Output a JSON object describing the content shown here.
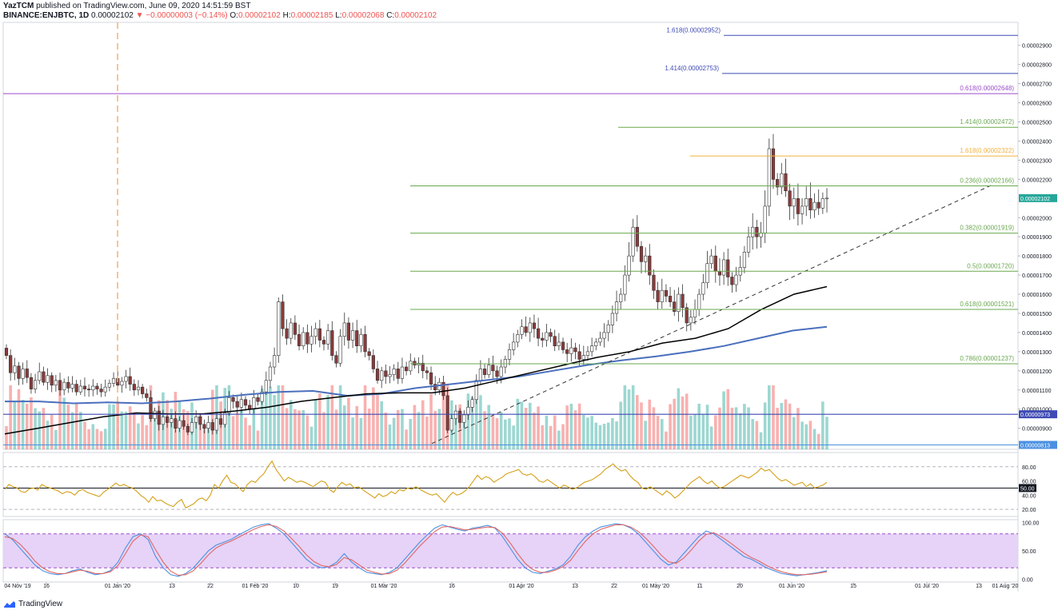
{
  "header": {
    "author": "YazTCM",
    "published_text": "published on TradingView.com, June 09, 2020 14:51:59 BST",
    "symbol": "BINANCE:ENJBTC, 1D",
    "last": "0.00002102",
    "change": "▼ −0.00000003 (−0.14%)",
    "o_label": "O:",
    "o": "0.00002102",
    "h_label": "H:",
    "h": "0.00002185",
    "l_label": "L:",
    "l": "0.00002068",
    "c_label": "C:",
    "c": "0.00002102"
  },
  "footer": {
    "brand": "TradingView"
  },
  "colors": {
    "up": "#26a69a",
    "down": "#ef5350",
    "fib_green": "#6aa84f",
    "fib_orange": "#f0b03c",
    "fib_purple": "#9c4dcc",
    "blue_line": "#3f4ab5",
    "ma_black": "#000000",
    "ma_blue": "#4a6fbd",
    "rsi": "#d4a017",
    "stoch_k": "#4a90e2",
    "stoch_d": "#e06666",
    "stoch_band": "#e6d3f7"
  },
  "chart_data": [
    {
      "type": "candlestick",
      "title": "BINANCE:ENJBTC, 1D",
      "ylim": [
        7.9e-06,
        3.02e-05
      ],
      "y_ticks": [
        "0.00002900",
        "0.00002800",
        "0.00002700",
        "0.00002600",
        "0.00002500",
        "0.00002400",
        "0.00002300",
        "0.00002200",
        "0.00002000",
        "0.00001900",
        "0.00001800",
        "0.00001700",
        "0.00001600",
        "0.00001500",
        "0.00001400",
        "0.00001300",
        "0.00001200",
        "0.00001100",
        "0.00001000",
        "0.00000900"
      ],
      "x_ticks": [
        "04 Nov '19",
        "16",
        "01 Jan '20",
        "13",
        "22",
        "01 Feb '20",
        "10",
        "19",
        "01 Mar '20",
        "16",
        "01 Apr '20",
        "13",
        "22",
        "01 May '20",
        "11",
        "20",
        "01 Jun '20",
        "15",
        "01 Jul '20",
        "13",
        "01 Aug '20"
      ],
      "price_badges": [
        {
          "label": "0.00002102",
          "value": 2.102e-05,
          "color": "#26a69a"
        },
        {
          "label": "0.00000973",
          "value": 9.73e-06,
          "color": "#3f4ab5"
        },
        {
          "label": "0.00000813",
          "value": 8.13e-06,
          "color": "#4a90e2"
        }
      ],
      "horizontal_levels": [
        {
          "label": "1.618(0.00002952)",
          "value": 2.952e-05,
          "color": "#3f4ab5"
        },
        {
          "label": "1.414(0.00002753)",
          "value": 2.753e-05,
          "color": "#3f4ab5"
        },
        {
          "label": "0.618(0.00002648)",
          "value": 2.648e-05,
          "color": "#9c4dcc"
        },
        {
          "label": "1.414(0.00002472)",
          "value": 2.472e-05,
          "color": "#6aa84f"
        },
        {
          "label": "1.618(0.00002322)",
          "value": 2.322e-05,
          "color": "#f0b03c"
        },
        {
          "label": "0.236(0.00002166)",
          "value": 2.166e-05,
          "color": "#6aa84f"
        },
        {
          "label": "0.382(0.00001919)",
          "value": 1.919e-05,
          "color": "#6aa84f"
        },
        {
          "label": "0.5(0.00001720)",
          "value": 1.72e-05,
          "color": "#6aa84f"
        },
        {
          "label": "0.618(0.00001521)",
          "value": 1.521e-05,
          "color": "#6aa84f"
        },
        {
          "label": "0.786(0.00001237)",
          "value": 1.237e-05,
          "color": "#6aa84f"
        }
      ],
      "closes": [
        1.28e-05,
        1.19e-05,
        1.225e-05,
        1.16e-05,
        1.21e-05,
        1.165e-05,
        1.105e-05,
        1.15e-05,
        1.195e-05,
        1.14e-05,
        1.175e-05,
        1.125e-05,
        1.15e-05,
        1.1e-05,
        1.14e-05,
        1.11e-05,
        1.13e-05,
        1.09e-05,
        1.12e-05,
        1.105e-05,
        1.1e-05,
        1.12e-05,
        1.105e-05,
        1.09e-05,
        1.115e-05,
        1.135e-05,
        1.16e-05,
        1.125e-05,
        1.145e-05,
        1.17e-05,
        1.13e-05,
        1.1e-05,
        1.115e-05,
        1.08e-05,
        1.06e-05,
        9.5e-06,
        9.9e-06,
        9.2e-06,
        9.6e-06,
        9.3e-06,
        9.5e-06,
        9e-06,
        9.4e-06,
        9.1e-06,
        8.8e-06,
        9.3e-06,
        9.6e-06,
        9.2e-06,
        9e-06,
        9.3e-06,
        8.9e-06,
        9.5e-06,
        9.2e-06,
        9.8e-06,
        1.06e-05,
        1.04e-05,
        1.01e-05,
        1.05e-05,
        1.02e-05,
        1e-05,
        1.06e-05,
        1.04e-05,
        1.09e-05,
        1.15e-05,
        1.22e-05,
        1.28e-05,
        1.56e-05,
        1.42e-05,
        1.37e-05,
        1.45e-05,
        1.39e-05,
        1.33e-05,
        1.4e-05,
        1.34e-05,
        1.38e-05,
        1.42e-05,
        1.36e-05,
        1.34e-05,
        1.41e-05,
        1.28e-05,
        1.24e-05,
        1.38e-05,
        1.45e-05,
        1.36e-05,
        1.41e-05,
        1.33e-05,
        1.39e-05,
        1.3e-05,
        1.28e-05,
        1.21e-05,
        1.15e-05,
        1.2e-05,
        1.17e-05,
        1.18e-05,
        1.21e-05,
        1.16e-05,
        1.22e-05,
        1.2e-05,
        1.25e-05,
        1.23e-05,
        1.24e-05,
        1.2e-05,
        1.19e-05,
        1.13e-05,
        1.1e-05,
        1.14e-05,
        1.07e-05,
        8.9e-06,
        9.5e-06,
        9.9e-06,
        9.3e-06,
        9.7e-06,
        1.01e-05,
        1.05e-05,
        1.15e-05,
        1.21e-05,
        1.18e-05,
        1.23e-05,
        1.2e-05,
        1.17e-05,
        1.22e-05,
        1.26e-05,
        1.31e-05,
        1.35e-05,
        1.39e-05,
        1.43e-05,
        1.4e-05,
        1.45e-05,
        1.42e-05,
        1.37e-05,
        1.36e-05,
        1.4e-05,
        1.38e-05,
        1.33e-05,
        1.35e-05,
        1.31e-05,
        1.29e-05,
        1.32e-05,
        1.3e-05,
        1.26e-05,
        1.28e-05,
        1.3e-05,
        1.33e-05,
        1.35e-05,
        1.37e-05,
        1.4e-05,
        1.44e-05,
        1.5e-05,
        1.56e-05,
        1.6e-05,
        1.7e-05,
        1.8e-05,
        1.95e-05,
        1.85e-05,
        1.77e-05,
        1.8e-05,
        1.7e-05,
        1.62e-05,
        1.56e-05,
        1.62e-05,
        1.59e-05,
        1.56e-05,
        1.51e-05,
        1.6e-05,
        1.53e-05,
        1.45e-05,
        1.48e-05,
        1.52e-05,
        1.6e-05,
        1.66e-05,
        1.76e-05,
        1.8e-05,
        1.72e-05,
        1.7e-05,
        1.78e-05,
        1.69e-05,
        1.65e-05,
        1.7e-05,
        1.74e-05,
        1.82e-05,
        1.9e-05,
        1.95e-05,
        1.9e-05,
        1.92e-05,
        2.06e-05,
        2.36e-05,
        2.2e-05,
        2.16e-05,
        2.23e-05,
        2.14e-05,
        2.06e-05,
        2.1e-05,
        2.02e-05,
        2.06e-05,
        2.1e-05,
        2.04e-05,
        2.08e-05,
        2.05e-05,
        2.1e-05,
        2.102e-05
      ],
      "ma_200": [
        8.7e-06,
        9e-06,
        9.3e-06,
        9.6e-06,
        9.8e-06,
        9.75e-06,
        9.75e-06,
        9.9e-06,
        1.01e-05,
        1.04e-05,
        1.06e-05,
        1.08e-05,
        1.085e-05,
        1.085e-05,
        1.11e-05,
        1.15e-05,
        1.19e-05,
        1.23e-05,
        1.27e-05,
        1.3e-05,
        1.345e-05,
        1.37e-05,
        1.42e-05,
        1.52e-05,
        1.6e-05,
        1.64e-05
      ],
      "ma_200_name_hint": "",
      "ma_blue": [
        1.04e-05,
        1.04e-05,
        1.03e-05,
        1.035e-05,
        1.03e-05,
        1.04e-05,
        1.055e-05,
        1.075e-05,
        1.09e-05,
        1.095e-05,
        1.07e-05,
        1.08e-05,
        1.11e-05,
        1.13e-05,
        1.15e-05,
        1.17e-05,
        1.2e-05,
        1.23e-05,
        1.255e-05,
        1.275e-05,
        1.3e-05,
        1.33e-05,
        1.37e-05,
        1.41e-05,
        1.43e-05
      ]
    },
    {
      "type": "line",
      "title": "",
      "ylim": [
        10,
        100
      ],
      "y_ticks": [
        "80.00",
        "60.00",
        "40.00",
        "20.00"
      ],
      "current_label": "50.00",
      "values": [
        48,
        55,
        52,
        50,
        45,
        44,
        49,
        50,
        47,
        55,
        52,
        50,
        48,
        46,
        42,
        45,
        44,
        40,
        46,
        48,
        44,
        42,
        40,
        38,
        44,
        48,
        52,
        57,
        53,
        55,
        52,
        50,
        46,
        40,
        36,
        30,
        38,
        32,
        33,
        29,
        26,
        24,
        30,
        34,
        22,
        25,
        28,
        34,
        36,
        32,
        40,
        55,
        50,
        60,
        68,
        58,
        56,
        50,
        45,
        55,
        60,
        58,
        65,
        70,
        80,
        88,
        76,
        68,
        60,
        65,
        62,
        58,
        60,
        58,
        55,
        52,
        56,
        60,
        58,
        48,
        44,
        52,
        58,
        54,
        56,
        50,
        52,
        48,
        44,
        40,
        36,
        42,
        38,
        40,
        45,
        42,
        48,
        46,
        50,
        48,
        52,
        48,
        45,
        42,
        40,
        42,
        36,
        30,
        38,
        44,
        40,
        42,
        46,
        52,
        60,
        68,
        62,
        66,
        64,
        58,
        62,
        65,
        70,
        72,
        74,
        76,
        70,
        68,
        70,
        66,
        60,
        58,
        62,
        58,
        54,
        50,
        54,
        52,
        48,
        50,
        54,
        58,
        60,
        62,
        66,
        70,
        76,
        80,
        84,
        78,
        74,
        76,
        68,
        62,
        58,
        50,
        48,
        52,
        48,
        44,
        40,
        46,
        42,
        36,
        40,
        46,
        52,
        58,
        62,
        66,
        60,
        56,
        60,
        54,
        50,
        52,
        56,
        60,
        64,
        68,
        66,
        64,
        68,
        72,
        78,
        74,
        76,
        70,
        64,
        60,
        62,
        58,
        54,
        56,
        58,
        52,
        56,
        50,
        52,
        54,
        58
      ],
      "levels": [
        80,
        50,
        20
      ]
    },
    {
      "type": "line",
      "title": "",
      "ylim": [
        -5,
        105
      ],
      "y_ticks": [
        "100.00",
        "50.00",
        "0.00"
      ],
      "band": [
        20,
        80
      ],
      "series": [
        {
          "values": [
            80,
            70,
            55,
            40,
            25,
            15,
            10,
            8,
            10,
            15,
            18,
            12,
            8,
            10,
            15,
            30,
            55,
            75,
            80,
            70,
            40,
            20,
            8,
            5,
            10,
            20,
            35,
            50,
            60,
            65,
            70,
            78,
            85,
            92,
            96,
            98,
            90,
            80,
            65,
            50,
            35,
            25,
            20,
            22,
            30,
            45,
            30,
            20,
            12,
            10,
            8,
            12,
            20,
            35,
            50,
            65,
            78,
            90,
            96,
            92,
            88,
            85,
            90,
            92,
            95,
            90,
            75,
            55,
            35,
            20,
            12,
            10,
            14,
            18,
            25,
            40,
            60,
            75,
            85,
            92,
            95,
            98,
            96,
            90,
            80,
            65,
            50,
            35,
            25,
            30,
            45,
            60,
            75,
            85,
            80,
            70,
            60,
            50,
            40,
            35,
            28,
            20,
            15,
            10,
            8,
            6,
            8,
            10,
            12,
            15
          ]
        },
        {
          "values": [
            75,
            72,
            62,
            48,
            32,
            20,
            13,
            10,
            10,
            13,
            16,
            14,
            10,
            10,
            13,
            24,
            45,
            67,
            78,
            75,
            52,
            30,
            14,
            7,
            8,
            15,
            28,
            43,
            55,
            62,
            67,
            74,
            81,
            88,
            93,
            96,
            93,
            85,
            72,
            58,
            43,
            31,
            24,
            22,
            26,
            38,
            34,
            25,
            16,
            12,
            9,
            10,
            16,
            28,
            43,
            58,
            71,
            84,
            92,
            93,
            90,
            87,
            88,
            90,
            92,
            91,
            81,
            64,
            45,
            28,
            17,
            12,
            12,
            16,
            22,
            33,
            51,
            67,
            80,
            88,
            92,
            96,
            96,
            92,
            84,
            72,
            58,
            43,
            31,
            28,
            37,
            51,
            67,
            79,
            82,
            75,
            66,
            56,
            46,
            38,
            32,
            24,
            18,
            13,
            10,
            8,
            8,
            9,
            11,
            13
          ]
        }
      ]
    }
  ]
}
